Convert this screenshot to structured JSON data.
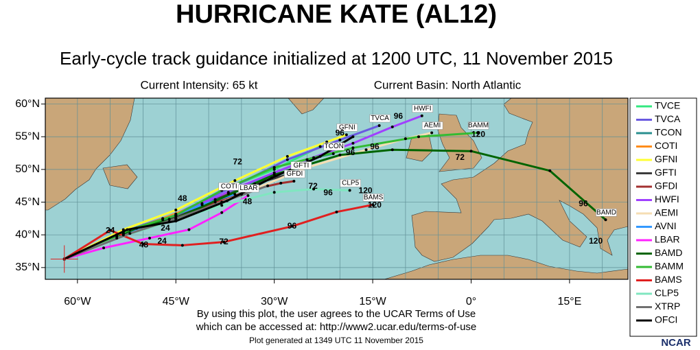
{
  "title": "HURRICANE KATE (AL12)",
  "subtitle": "Early-cycle track guidance initialized at 1200 UTC, 11 November 2015",
  "current_intensity": "Current Intensity: 65 kt",
  "current_basin": "Current Basin: North Atlantic",
  "map": {
    "lonlim": [
      -64.9,
      23.9
    ],
    "latlim": [
      33.2,
      60.9
    ],
    "lon_grid": [
      -65,
      -60,
      -55,
      -50,
      -45,
      -40,
      -35,
      -30,
      -25,
      -20,
      -15,
      -10,
      -5,
      0,
      5,
      10,
      15,
      20
    ],
    "lonticks": [
      {
        "value": -60,
        "label": "60°W"
      },
      {
        "value": -45,
        "label": "45°W"
      },
      {
        "value": -30,
        "label": "30°W"
      },
      {
        "value": -15,
        "label": "15°W"
      },
      {
        "value": 0,
        "label": "0°"
      },
      {
        "value": 15,
        "label": "15°E"
      }
    ],
    "latticks": [
      {
        "value": 35,
        "label": "35°N"
      },
      {
        "value": 40,
        "label": "40°N"
      },
      {
        "value": 45,
        "label": "45°N"
      },
      {
        "value": 50,
        "label": "50°N"
      },
      {
        "value": 55,
        "label": "55°N"
      },
      {
        "value": 60,
        "label": "60°N"
      }
    ],
    "tracks": [
      {
        "name": "TVCE",
        "color": "#33e880",
        "box": false,
        "lon": [
          -62,
          -53,
          -45,
          -38,
          -30,
          -23
        ],
        "lat": [
          36.3,
          40.2,
          43,
          46.8,
          50,
          53.5
        ]
      },
      {
        "name": "TVCA",
        "color": "#6a5ae0",
        "box": true,
        "lon": [
          -62,
          -53,
          -45,
          -36,
          -28,
          -20,
          -14
        ],
        "lat": [
          36.3,
          40.5,
          43.2,
          47.5,
          51.5,
          54.5,
          56.7
        ]
      },
      {
        "name": "TCON",
        "color": "#2a8f8f",
        "box": true,
        "lon": [
          -62,
          -53,
          -45,
          -37,
          -30,
          -24,
          -21
        ],
        "lat": [
          36.3,
          40.3,
          42.8,
          46.5,
          49.5,
          51.8,
          52.4
        ]
      },
      {
        "name": "COTI",
        "color": "#ff8c1a",
        "box": true,
        "lon": [
          -62,
          -54,
          -47,
          -41,
          -37
        ],
        "lat": [
          36.3,
          40,
          42.5,
          44.8,
          46.3
        ]
      },
      {
        "name": "GFNI",
        "color": "#ffff33",
        "box": true,
        "lon": [
          -62,
          -53,
          -45,
          -36,
          -28,
          -22,
          -19
        ],
        "lat": [
          36.3,
          40.8,
          43.8,
          48.3,
          52,
          54.2,
          55.3
        ]
      },
      {
        "name": "GFTI",
        "color": "#3c3c3c",
        "box": true,
        "lon": [
          -62,
          -53,
          -46,
          -39,
          -33,
          -28,
          -26
        ],
        "lat": [
          36.3,
          40.2,
          42.4,
          45.4,
          47.8,
          49.2,
          49.5
        ]
      },
      {
        "name": "GFDI",
        "color": "#a33030",
        "box": true,
        "lon": [
          -62,
          -53,
          -46,
          -39,
          -33,
          -29,
          -27
        ],
        "lat": [
          36.3,
          40,
          42,
          45,
          47,
          47.9,
          48.2
        ]
      },
      {
        "name": "HWFI",
        "color": "#a040ff",
        "box": true,
        "lon": [
          -62,
          -53,
          -45,
          -35,
          -25,
          -18,
          -12,
          -7.5
        ],
        "lat": [
          36.3,
          40.5,
          43,
          47.5,
          51.5,
          54,
          56.5,
          58.2
        ]
      },
      {
        "name": "AEMI",
        "color": "#f5deb3",
        "box": true,
        "lon": [
          -62,
          -53,
          -45,
          -35,
          -25,
          -16,
          -10,
          -6
        ],
        "lat": [
          36.3,
          40,
          42.3,
          46.2,
          50.3,
          53,
          54.7,
          55.6
        ]
      },
      {
        "name": "AVNI",
        "color": "#3399ff",
        "box": false,
        "lon": [
          -62,
          -54,
          -47,
          -41,
          -36
        ],
        "lat": [
          36.3,
          39.8,
          42.3,
          44.6,
          46.2
        ]
      },
      {
        "name": "LBAR",
        "color": "#ff22ff",
        "box": true,
        "lon": [
          -62,
          -56,
          -49,
          -43,
          -38,
          -34
        ],
        "lat": [
          36.3,
          38,
          39.5,
          40.8,
          43.4,
          46
        ]
      },
      {
        "name": "BAMD",
        "color": "#006400",
        "box": true,
        "lon": [
          -62,
          -51,
          -45,
          -30,
          -20,
          -12,
          0,
          12,
          20.5
        ],
        "lat": [
          36.3,
          41,
          42.5,
          49.2,
          52.2,
          53,
          52.8,
          49.8,
          42.3
        ]
      },
      {
        "name": "BAMM",
        "color": "#33bb33",
        "box": true,
        "lon": [
          -62,
          -52,
          -45,
          -38,
          -30,
          -18,
          -8,
          1
        ],
        "lat": [
          36.3,
          40.8,
          43,
          46.8,
          50.3,
          53.3,
          55,
          55.6
        ]
      },
      {
        "name": "BAMS",
        "color": "#e02020",
        "box": true,
        "lon": [
          -62,
          -55,
          -50,
          -44,
          -37.7,
          -27.3,
          -20.5,
          -15
        ],
        "lat": [
          36.3,
          40.7,
          38.6,
          38.4,
          38.9,
          41.3,
          43.5,
          44.6
        ]
      },
      {
        "name": "CLP5",
        "color": "#80e6c0",
        "box": true,
        "lon": [
          -62,
          -54,
          -46,
          -38,
          -30,
          -24,
          -18.5
        ],
        "lat": [
          36.3,
          39.5,
          42,
          44.5,
          46.5,
          47,
          46.8
        ]
      },
      {
        "name": "XTRP",
        "color": "#707070",
        "box": false,
        "lon": [
          -62,
          -52,
          -45,
          -38,
          -31
        ],
        "lat": [
          36.3,
          40.2,
          42.5,
          45,
          47.5
        ]
      },
      {
        "name": "OFCI",
        "color": "#000000",
        "box": false,
        "lon": [
          -62,
          -52.4,
          -45,
          -37.2,
          -30.4,
          -23,
          -18
        ],
        "lat": [
          36.3,
          40.8,
          42.1,
          45.2,
          48.7,
          52,
          55
        ]
      }
    ],
    "hour_labels": [
      {
        "text": "24",
        "lon": -55.0,
        "lat": 40.6
      },
      {
        "text": "24",
        "lon": -47.1,
        "lat": 39.0
      },
      {
        "text": "48",
        "lon": -49.9,
        "lat": 38.4
      },
      {
        "text": "24",
        "lon": -46.6,
        "lat": 41.0
      },
      {
        "text": "48",
        "lon": -44.0,
        "lat": 45.5
      },
      {
        "text": "72",
        "lon": -35.6,
        "lat": 51.1
      },
      {
        "text": "72",
        "lon": -37.7,
        "lat": 38.9
      },
      {
        "text": "72",
        "lon": -24.1,
        "lat": 47.4
      },
      {
        "text": "96",
        "lon": -27.3,
        "lat": 41.3
      },
      {
        "text": "96",
        "lon": -21.8,
        "lat": 46.4
      },
      {
        "text": "96",
        "lon": -14.7,
        "lat": 53.4
      },
      {
        "text": "96",
        "lon": -11.1,
        "lat": 58.1
      },
      {
        "text": "96",
        "lon": -20.0,
        "lat": 55.5
      },
      {
        "text": "96",
        "lon": -18.4,
        "lat": 52.5
      },
      {
        "text": "72",
        "lon": -1.7,
        "lat": 51.8
      },
      {
        "text": "96",
        "lon": 17.1,
        "lat": 44.7
      },
      {
        "text": "120",
        "lon": -16.1,
        "lat": 46.7
      },
      {
        "text": "120",
        "lon": -14.7,
        "lat": 44.5
      },
      {
        "text": "120",
        "lon": 1.1,
        "lat": 55.3
      },
      {
        "text": "120",
        "lon": 19.0,
        "lat": 39.0
      },
      {
        "text": "48",
        "lon": -34.1,
        "lat": 45.0
      }
    ]
  },
  "disclaimer": [
    "By using this plot, the user agrees to the UCAR Terms of Use",
    "which can be accessed at: http://www2.ucar.edu/terms-of-use"
  ],
  "generated": "Plot generated at 1349 UTC   11 November 2015",
  "logo": "NCAR"
}
